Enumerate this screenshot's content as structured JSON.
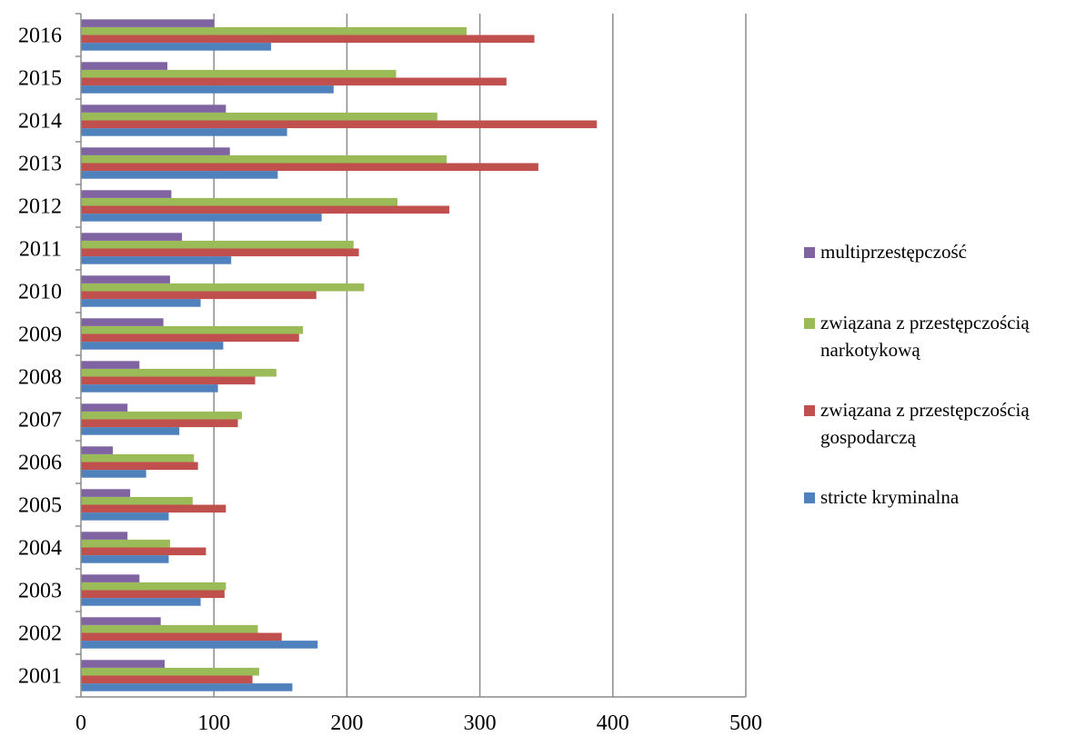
{
  "chart_data": {
    "type": "bar",
    "orientation": "horizontal",
    "grouped": true,
    "categories": [
      "2001",
      "2002",
      "2003",
      "2004",
      "2005",
      "2006",
      "2007",
      "2008",
      "2009",
      "2010",
      "2011",
      "2012",
      "2013",
      "2014",
      "2015",
      "2016"
    ],
    "series": [
      {
        "name": "stricte kryminalna",
        "color": "#4F81BD",
        "values": [
          159,
          178,
          90,
          66,
          66,
          49,
          74,
          103,
          107,
          90,
          113,
          181,
          148,
          155,
          190,
          143
        ]
      },
      {
        "name": "związana z przestępczością gospodarczą",
        "color": "#C0504D",
        "values": [
          129,
          151,
          108,
          94,
          109,
          88,
          118,
          131,
          164,
          177,
          209,
          277,
          344,
          388,
          320,
          341
        ]
      },
      {
        "name": "związana z przestępczością narkotykową",
        "color": "#9BBB59",
        "values": [
          134,
          133,
          109,
          67,
          84,
          85,
          121,
          147,
          167,
          213,
          205,
          238,
          275,
          268,
          237,
          290
        ]
      },
      {
        "name": "multiprzestępczość",
        "color": "#8064A2",
        "values": [
          63,
          60,
          44,
          35,
          37,
          24,
          35,
          44,
          62,
          67,
          76,
          68,
          112,
          109,
          65,
          100
        ]
      }
    ],
    "xlim": [
      0,
      500
    ],
    "xticks": [
      "0",
      "100",
      "200",
      "300",
      "400",
      "500"
    ],
    "grid": true,
    "legend_position": "right",
    "legend_order": [
      3,
      2,
      1,
      0
    ]
  }
}
